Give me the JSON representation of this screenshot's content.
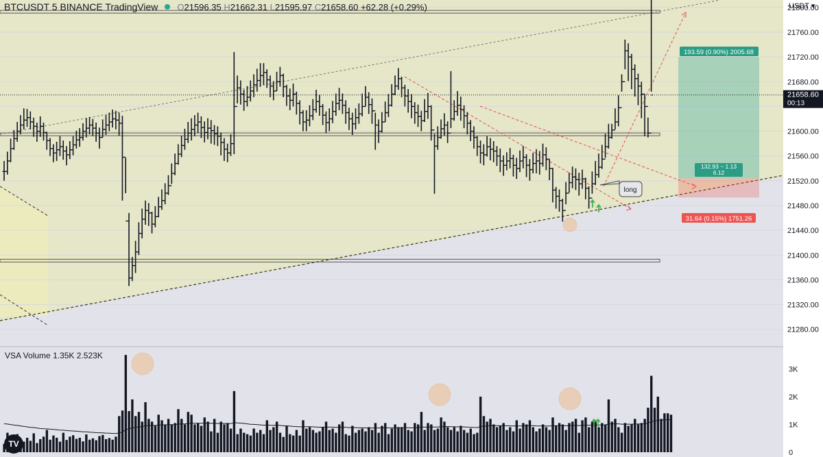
{
  "header": {
    "symbol": "BTCUSDT",
    "interval": "5",
    "exchange": "BINANCE",
    "brand": "TradingView",
    "open_label": "O",
    "open": "21596.35",
    "high_label": "H",
    "high": "21662.31",
    "low_label": "L",
    "low": "21595.97",
    "close_label": "C",
    "close": "21658.60",
    "change": "+62.28 (+0.29%)"
  },
  "currency": "USDT",
  "last_price": {
    "value": "21658.60",
    "countdown": "00:13"
  },
  "volume_header": {
    "name": "VSA Volume",
    "v1": "1.35K",
    "v2": "2.523K"
  },
  "annotations": {
    "long_label": "long",
    "target_label": "193.59 (0.90%) 2005.68",
    "ratio_label_1": "132.93 ~ 1.13",
    "ratio_label_2": "6.12",
    "stop_label": "31.64 (0.15%) 1751.26"
  },
  "colors": {
    "up": "#131722",
    "target_zone": "#26a69a",
    "stop_zone": "#ef5350",
    "channel_fill": "#e6e6c8",
    "lower_fill": "#dcdde6",
    "signal_arrow": "#4caf50",
    "circle_marker": "#f5a65b"
  },
  "chart_data": {
    "type": "ohlc",
    "symbol": "BTCUSDT",
    "price_axis": {
      "ticks": [
        21800,
        21760,
        21720,
        21680,
        21640,
        21600,
        21560,
        21520,
        21480,
        21440,
        21400,
        21360,
        21320,
        21280
      ],
      "tick_labels": [
        "21800.00",
        "21760.00",
        "21720.00",
        "21680.00",
        "21640.00",
        "21600.00",
        "21560.00",
        "21520.00",
        "21480.00",
        "21440.00",
        "21400.00",
        "21360.00",
        "21320.00",
        "21280.00"
      ],
      "range": [
        21252,
        21812
      ]
    },
    "volume_axis": {
      "ticks": [
        0,
        1000,
        2000,
        3000
      ],
      "tick_labels": [
        "0",
        "1K",
        "2K",
        "3K"
      ],
      "range": [
        0,
        3600
      ]
    },
    "closes": [
      21535,
      21552,
      21572,
      21588,
      21600,
      21610,
      21618,
      21622,
      21615,
      21608,
      21600,
      21608,
      21598,
      21585,
      21572,
      21565,
      21570,
      21575,
      21568,
      21562,
      21570,
      21578,
      21586,
      21590,
      21600,
      21605,
      21610,
      21605,
      21597,
      21590,
      21603,
      21610,
      21615,
      21620,
      21618,
      21613,
      21558,
      21455,
      21363,
      21383,
      21405,
      21435,
      21458,
      21472,
      21468,
      21450,
      21462,
      21478,
      21488,
      21500,
      21512,
      21532,
      21548,
      21563,
      21577,
      21587,
      21597,
      21603,
      21610,
      21615,
      21606,
      21598,
      21605,
      21601,
      21596,
      21592,
      21582,
      21571,
      21565,
      21580,
      21640,
      21670,
      21660,
      21648,
      21655,
      21665,
      21675,
      21682,
      21690,
      21695,
      21683,
      21673,
      21665,
      21680,
      21690,
      21672,
      21657,
      21650,
      21660,
      21645,
      21630,
      21615,
      21618,
      21625,
      21635,
      21648,
      21640,
      21626,
      21614,
      21620,
      21632,
      21645,
      21650,
      21642,
      21630,
      21620,
      21612,
      21622,
      21628,
      21640,
      21655,
      21643,
      21633,
      21610,
      21600,
      21615,
      21630,
      21642,
      21660,
      21673,
      21685,
      21670,
      21657,
      21648,
      21640,
      21630,
      21624,
      21617,
      21632,
      21640,
      21602,
      21576,
      21590,
      21604,
      21610,
      21597,
      21620,
      21632,
      21642,
      21635,
      21625,
      21613,
      21600,
      21590,
      21575,
      21565,
      21562,
      21575,
      21571,
      21568,
      21560,
      21552,
      21545,
      21552,
      21556,
      21545,
      21540,
      21552,
      21558,
      21545,
      21538,
      21548,
      21552,
      21548,
      21562,
      21555,
      21540,
      21505,
      21495,
      21488,
      21472,
      21500,
      21517,
      21526,
      21522,
      21515,
      21523,
      21508,
      21492,
      21515,
      21530,
      21542,
      21555,
      21575,
      21590,
      21602,
      21615,
      21638,
      21680,
      21730,
      21720,
      21700,
      21685,
      21673,
      21660,
      21640,
      21597,
      21658.6
    ],
    "highs": [
      21552,
      21567,
      21588,
      21602,
      21615,
      21626,
      21637,
      21636,
      21632,
      21622,
      21614,
      21624,
      21614,
      21599,
      21589,
      21579,
      21583,
      21592,
      21585,
      21576,
      21584,
      21592,
      21601,
      21605,
      21613,
      21621,
      21623,
      21620,
      21614,
      21606,
      21619,
      21626,
      21630,
      21635,
      21633,
      21630,
      21625,
      21557,
      21468,
      21397,
      21423,
      21453,
      21475,
      21488,
      21484,
      21470,
      21479,
      21494,
      21506,
      21516,
      21529,
      21548,
      21564,
      21579,
      21593,
      21604,
      21615,
      21621,
      21626,
      21630,
      21624,
      21616,
      21621,
      21618,
      21610,
      21608,
      21598,
      21589,
      21580,
      21595,
      21728,
      21690,
      21682,
      21667,
      21673,
      21682,
      21692,
      21701,
      21710,
      21710,
      21700,
      21690,
      21681,
      21696,
      21704,
      21693,
      21675,
      21669,
      21677,
      21664,
      21650,
      21634,
      21634,
      21642,
      21652,
      21667,
      21659,
      21644,
      21632,
      21637,
      21649,
      21661,
      21670,
      21661,
      21650,
      21638,
      21630,
      21637,
      21645,
      21661,
      21673,
      21663,
      21653,
      21630,
      21619,
      21631,
      21648,
      21660,
      21676,
      21690,
      21702,
      21688,
      21675,
      21668,
      21660,
      21647,
      21643,
      21633,
      21652,
      21662,
      21642,
      21596,
      21608,
      21619,
      21629,
      21616,
      21697,
      21650,
      21665,
      21656,
      21642,
      21631,
      21618,
      21608,
      21592,
      21585,
      21579,
      21592,
      21589,
      21584,
      21576,
      21572,
      21561,
      21566,
      21573,
      21562,
      21557,
      21569,
      21576,
      21563,
      21555,
      21565,
      21571,
      21568,
      21580,
      21574,
      21555,
      21541,
      21510,
      21506,
      21491,
      21518,
      21533,
      21543,
      21540,
      21533,
      21538,
      21525,
      21511,
      21535,
      21552,
      21564,
      21578,
      21596,
      21612,
      21612,
      21637,
      21658,
      21692,
      21748,
      21742,
      21725,
      21708,
      21693,
      21680,
      21660,
      21622,
      21664
    ],
    "lows": [
      21520,
      21530,
      21550,
      21570,
      21583,
      21595,
      21603,
      21607,
      21603,
      21591,
      21583,
      21591,
      21585,
      21570,
      21560,
      21550,
      21552,
      21560,
      21554,
      21545,
      21555,
      21561,
      21572,
      21575,
      21585,
      21590,
      21595,
      21592,
      21583,
      21572,
      21590,
      21594,
      21600,
      21606,
      21603,
      21593,
      21488,
      21500,
      21350,
      21358,
      21371,
      21400,
      21427,
      21449,
      21447,
      21435,
      21445,
      21461,
      21473,
      21482,
      21497,
      21515,
      21529,
      21546,
      21558,
      21570,
      21581,
      21585,
      21592,
      21597,
      21589,
      21582,
      21587,
      21580,
      21578,
      21576,
      21561,
      21552,
      21550,
      21560,
      21563,
      21645,
      21643,
      21633,
      21640,
      21648,
      21655,
      21664,
      21672,
      21675,
      21670,
      21655,
      21650,
      21665,
      21672,
      21655,
      21641,
      21634,
      21640,
      21627,
      21611,
      21600,
      21600,
      21608,
      21618,
      21630,
      21625,
      21610,
      21597,
      21600,
      21613,
      21625,
      21634,
      21628,
      21612,
      21602,
      21594,
      21603,
      21612,
      21624,
      21640,
      21628,
      21612,
      21570,
      21581,
      21598,
      21615,
      21623,
      21640,
      21658,
      21667,
      21655,
      21640,
      21630,
      21621,
      21612,
      21607,
      21600,
      21615,
      21620,
      21585,
      21499,
      21570,
      21588,
      21593,
      21581,
      21605,
      21617,
      21625,
      21617,
      21605,
      21595,
      21584,
      21572,
      21560,
      21548,
      21545,
      21559,
      21553,
      21550,
      21544,
      21534,
      21528,
      21537,
      21540,
      21527,
      21523,
      21534,
      21540,
      21526,
      21520,
      21532,
      21532,
      21530,
      21543,
      21537,
      21521,
      21485,
      21475,
      21470,
      21454,
      21482,
      21501,
      21508,
      21505,
      21496,
      21507,
      21490,
      21475,
      21499,
      21513,
      21525,
      21539,
      21557,
      21572,
      21588,
      21603,
      21608,
      21664,
      21700,
      21681,
      21668,
      21656,
      21642,
      21621,
      21592,
      21590
    ],
    "volume": [
      300,
      700,
      550,
      400,
      650,
      450,
      380,
      520,
      410,
      680,
      330,
      470,
      560,
      800,
      450,
      600,
      520,
      380,
      700,
      440,
      560,
      610,
      480,
      520,
      390,
      640,
      450,
      500,
      430,
      580,
      620,
      470,
      510,
      450,
      560,
      1300,
      1500,
      3500,
      1480,
      1900,
      1300,
      1450,
      1100,
      1800,
      1200,
      1100,
      950,
      1350,
      1150,
      1000,
      1200,
      1000,
      1050,
      1550,
      1200,
      1000,
      1450,
      1350,
      1000,
      1050,
      950,
      1250,
      1100,
      750,
      1200,
      700,
      1100,
      1000,
      1050,
      850,
      2200,
      650,
      850,
      700,
      650,
      600,
      850,
      700,
      800,
      650,
      1150,
      800,
      900,
      1100,
      700,
      550,
      950,
      650,
      600,
      800,
      600,
      1150,
      850,
      900,
      800,
      700,
      750,
      900,
      1100,
      800,
      850,
      700,
      1000,
      1100,
      650,
      600,
      950,
      700,
      800,
      850,
      750,
      900,
      800,
      1050,
      700,
      950,
      1050,
      650,
      850,
      1000,
      900,
      900,
      1050,
      800,
      750,
      1050,
      1000,
      1450,
      800,
      1050,
      1000,
      800,
      850,
      1250,
      1100,
      900,
      800,
      900,
      750,
      950,
      800,
      700,
      850,
      650,
      700,
      2000,
      1300,
      1100,
      1200,
      1000,
      900,
      950,
      1050,
      800,
      900,
      750,
      1150,
      850,
      1050,
      1000,
      1150,
      900,
      750,
      850,
      1000,
      900,
      800,
      1250,
      950,
      1050,
      1000,
      800,
      1050,
      1100,
      1200,
      700,
      1150,
      1250,
      900,
      1100,
      1150,
      900,
      1050,
      1000,
      1900,
      1100,
      1200,
      900,
      700,
      1050,
      950,
      1000,
      1200,
      1000,
      1050,
      1200,
      1600,
      2750,
      1600,
      2000,
      1200,
      1400,
      1400,
      1350
    ],
    "volume_ma_start": 1050,
    "levels": {
      "upper_resistance": 21793,
      "mid_support": 21595,
      "lower_support": 21391,
      "last": 21658.6,
      "entry": 21524,
      "target": 21720,
      "stop": 21493
    }
  }
}
